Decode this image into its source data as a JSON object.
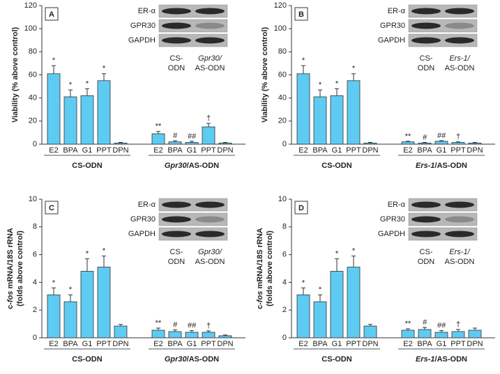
{
  "chart_data": [
    {
      "type": "bar",
      "panel": "A",
      "color": "#5ecbf3",
      "y_label": [
        [
          {
            "text": "Viability (% above control)"
          }
        ]
      ],
      "ylim": [
        0,
        120
      ],
      "yticks": [
        0,
        20,
        40,
        60,
        80,
        100,
        120
      ],
      "groups": [
        {
          "label": [
            {
              "text": "CS-ODN"
            }
          ],
          "categories": [
            "E2",
            "BPA",
            "G1",
            "PPT",
            "DPN"
          ],
          "values": [
            61,
            41,
            42,
            55,
            1
          ],
          "errors": [
            7,
            6,
            6,
            6,
            0.5
          ],
          "marks": [
            "*",
            "*",
            "*",
            "*",
            null
          ]
        },
        {
          "label": [
            {
              "text": "Gpr30",
              "italic": true
            },
            {
              "text": "/AS-ODN"
            }
          ],
          "categories": [
            "E2",
            "BPA",
            "G1",
            "PPT",
            "DPN"
          ],
          "values": [
            9,
            2,
            1.5,
            15,
            1
          ],
          "errors": [
            2,
            1,
            1,
            3,
            0.5
          ],
          "marks": [
            "**",
            "#",
            "##",
            "†",
            null
          ]
        }
      ],
      "blot": {
        "rows": [
          "ER-α",
          "GPR30",
          "GAPDH"
        ],
        "lanes": [
          [
            {
              "text": "CS-"
            },
            {
              "text": "ODN"
            }
          ],
          [
            {
              "text": "Gpr30/",
              "italic": true
            },
            {
              "text": "AS-ODN"
            }
          ]
        ]
      }
    },
    {
      "type": "bar",
      "panel": "B",
      "color": "#5ecbf3",
      "y_label": [
        [
          {
            "text": "Viability (% above control)"
          }
        ]
      ],
      "ylim": [
        0,
        120
      ],
      "yticks": [
        0,
        20,
        40,
        60,
        80,
        100,
        120
      ],
      "groups": [
        {
          "label": [
            {
              "text": "CS-ODN"
            }
          ],
          "categories": [
            "E2",
            "BPA",
            "G1",
            "PPT",
            "DPN"
          ],
          "values": [
            61,
            41,
            42,
            55,
            1
          ],
          "errors": [
            7,
            6,
            6,
            6,
            0.5
          ],
          "marks": [
            "*",
            "*",
            "*",
            "*",
            null
          ]
        },
        {
          "label": [
            {
              "text": "Ers-1",
              "italic": true
            },
            {
              "text": "/AS-ODN"
            }
          ],
          "categories": [
            "E2",
            "BPA",
            "G1",
            "PPT",
            "DPN"
          ],
          "values": [
            2,
            1,
            2.5,
            1.5,
            1
          ],
          "errors": [
            0.5,
            0.5,
            0.5,
            0.5,
            0.5
          ],
          "marks": [
            "**",
            "#",
            "##",
            "†",
            null
          ]
        }
      ],
      "blot": {
        "rows": [
          "ER-α",
          "GPR30",
          "GAPDH"
        ],
        "lanes": [
          [
            {
              "text": "CS-"
            },
            {
              "text": "ODN"
            }
          ],
          [
            {
              "text": "Ers-1/",
              "italic": true
            },
            {
              "text": "AS-ODN"
            }
          ]
        ]
      }
    },
    {
      "type": "bar",
      "panel": "C",
      "color": "#5ecbf3",
      "y_label": [
        [
          {
            "text": "c-"
          },
          {
            "text": "fos",
            "italic": true
          },
          {
            "text": " mRNA/18S rRNA"
          }
        ],
        [
          {
            "text": "(folds above control)"
          }
        ]
      ],
      "ylim": [
        0,
        10
      ],
      "yticks": [
        0,
        2,
        4,
        6,
        8,
        10
      ],
      "groups": [
        {
          "label": [
            {
              "text": "CS-ODN"
            }
          ],
          "categories": [
            "E2",
            "BPA",
            "G1",
            "PPT",
            "DPN"
          ],
          "values": [
            3.1,
            2.6,
            4.8,
            5.1,
            0.85
          ],
          "errors": [
            0.5,
            0.5,
            0.9,
            0.8,
            0.12
          ],
          "marks": [
            "*",
            "*",
            "*",
            "*",
            null
          ]
        },
        {
          "label": [
            {
              "text": "Gpr30",
              "italic": true
            },
            {
              "text": "/AS-ODN"
            }
          ],
          "categories": [
            "E2",
            "BPA",
            "G1",
            "PPT",
            "DPN"
          ],
          "values": [
            0.55,
            0.45,
            0.4,
            0.4,
            0.15
          ],
          "errors": [
            0.15,
            0.12,
            0.12,
            0.1,
            0.05
          ],
          "marks": [
            "**",
            "#",
            "##",
            "†",
            null
          ]
        }
      ],
      "blot": {
        "rows": [
          "ER-α",
          "GPR30",
          "GAPDH"
        ],
        "lanes": [
          [
            {
              "text": "CS-"
            },
            {
              "text": "ODN"
            }
          ],
          [
            {
              "text": "Gpr30/",
              "italic": true
            },
            {
              "text": "AS-ODN"
            }
          ]
        ]
      }
    },
    {
      "type": "bar",
      "panel": "D",
      "color": "#5ecbf3",
      "y_label": [
        [
          {
            "text": "c-"
          },
          {
            "text": "fos",
            "italic": true
          },
          {
            "text": " mRNA/18S rRNA"
          }
        ],
        [
          {
            "text": "(folds above control)"
          }
        ]
      ],
      "ylim": [
        0,
        10
      ],
      "yticks": [
        0,
        2,
        4,
        6,
        8,
        10
      ],
      "groups": [
        {
          "label": [
            {
              "text": "CS-ODN"
            }
          ],
          "categories": [
            "E2",
            "BPA",
            "G1",
            "PPT",
            "DPN"
          ],
          "values": [
            3.1,
            2.6,
            4.8,
            5.1,
            0.85
          ],
          "errors": [
            0.5,
            0.5,
            0.9,
            0.8,
            0.12
          ],
          "marks": [
            "*",
            "*",
            "*",
            "*",
            null
          ]
        },
        {
          "label": [
            {
              "text": "Ers-1",
              "italic": true
            },
            {
              "text": "/AS-ODN"
            }
          ],
          "categories": [
            "E2",
            "BPA",
            "G1",
            "PPT",
            "DPN"
          ],
          "values": [
            0.55,
            0.6,
            0.4,
            0.45,
            0.55
          ],
          "errors": [
            0.1,
            0.15,
            0.12,
            0.15,
            0.15
          ],
          "marks": [
            "**",
            "#",
            "##",
            "†",
            null
          ]
        }
      ],
      "blot": {
        "rows": [
          "ER-α",
          "GPR30",
          "GAPDH"
        ],
        "lanes": [
          [
            {
              "text": "CS-"
            },
            {
              "text": "ODN"
            }
          ],
          [
            {
              "text": "Ers-1/",
              "italic": true
            },
            {
              "text": "AS-ODN"
            }
          ]
        ]
      }
    }
  ]
}
